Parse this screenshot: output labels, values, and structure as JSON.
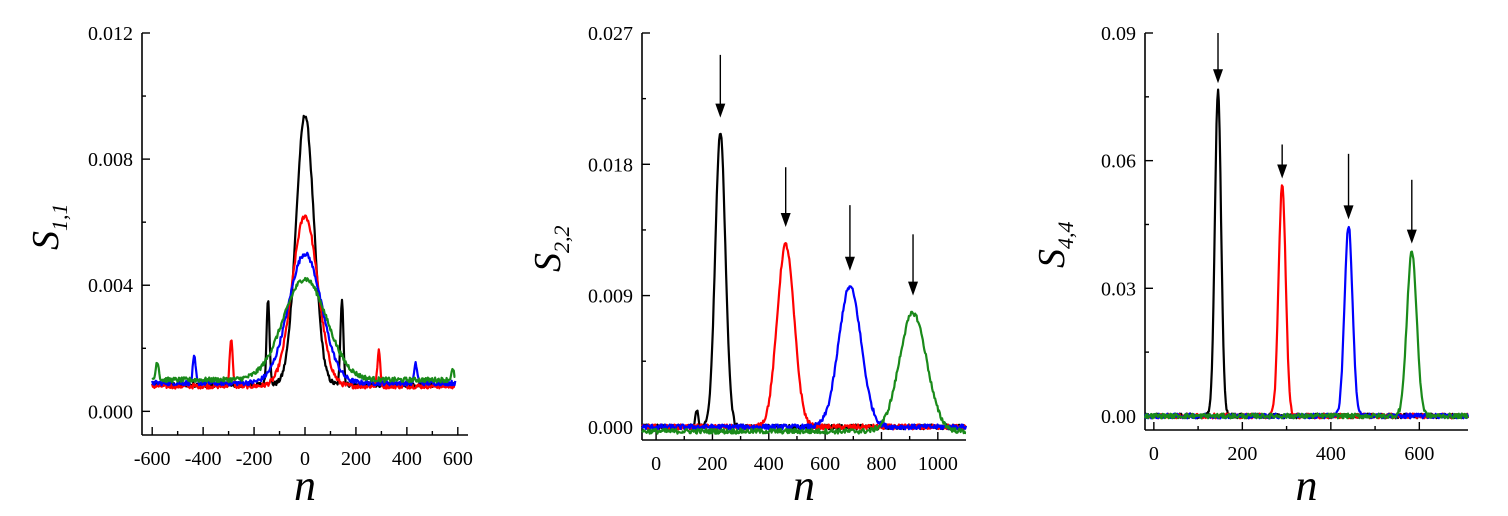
{
  "colors": {
    "black": "#000000",
    "red": "#ff0000",
    "blue": "#0000ff",
    "green": "#1a8a1a"
  },
  "chart_data": [
    {
      "type": "line",
      "xlabel": "n",
      "ylabel": "S",
      "ylabel_sub": "1,1",
      "xlim": [
        -640,
        640
      ],
      "ylim": [
        -0.00075,
        0.012
      ],
      "xticks": [
        -600,
        -400,
        -200,
        0,
        200,
        400,
        600
      ],
      "xtick_labels": [
        "-600",
        "-400",
        "-200",
        "0",
        "200",
        "400",
        "600"
      ],
      "yticks": [
        0.0,
        0.004,
        0.008,
        0.012
      ],
      "ytick_labels": [
        "0.000",
        "0.004",
        "0.008",
        "0.012"
      ],
      "grid": false,
      "series": [
        {
          "color": "black",
          "peak": {
            "x": 0,
            "y": 0.0094,
            "width": 35
          },
          "baseline": 0.00085,
          "side_peaks": [
            {
              "x": -145,
              "y": 0.0036
            },
            {
              "x": 145,
              "y": 0.0036
            }
          ],
          "x_range": [
            -600,
            590
          ]
        },
        {
          "color": "red",
          "peak": {
            "x": 0,
            "y": 0.0062,
            "width": 50
          },
          "baseline": 0.0008,
          "side_peaks": [
            {
              "x": -290,
              "y": 0.0023
            },
            {
              "x": 290,
              "y": 0.0019
            }
          ],
          "x_range": [
            -600,
            590
          ]
        },
        {
          "color": "blue",
          "peak": {
            "x": 0,
            "y": 0.005,
            "width": 65
          },
          "baseline": 0.0009,
          "side_peaks": [
            {
              "x": -435,
              "y": 0.0017
            },
            {
              "x": 435,
              "y": 0.0015
            }
          ],
          "x_range": [
            -600,
            590
          ]
        },
        {
          "color": "green",
          "peak": {
            "x": 0,
            "y": 0.0042,
            "width": 85
          },
          "baseline": 0.001,
          "side_peaks": [
            {
              "x": -580,
              "y": 0.0016
            },
            {
              "x": 580,
              "y": 0.0013
            }
          ],
          "x_range": [
            -600,
            590
          ]
        }
      ],
      "arrows": []
    },
    {
      "type": "line",
      "xlabel": "n",
      "ylabel": "S",
      "ylabel_sub": "2,2",
      "xlim": [
        -50,
        1100
      ],
      "ylim": [
        -0.0009,
        0.027
      ],
      "xticks": [
        0,
        200,
        400,
        600,
        800,
        1000
      ],
      "xtick_labels": [
        "0",
        "200",
        "400",
        "600",
        "800",
        "1000"
      ],
      "yticks": [
        0.0,
        0.009,
        0.018,
        0.027
      ],
      "ytick_labels": [
        "0.000",
        "0.009",
        "0.018",
        "0.027"
      ],
      "grid": false,
      "series": [
        {
          "color": "black",
          "peak": {
            "x": 228,
            "y": 0.0202,
            "width": 18
          },
          "baseline": 0.0,
          "side_peaks": [
            {
              "x": 145,
              "y": 0.0012
            }
          ],
          "x_range": [
            -50,
            1100
          ]
        },
        {
          "color": "red",
          "peak": {
            "x": 460,
            "y": 0.0125,
            "width": 30
          },
          "baseline": 0.0,
          "side_peaks": [],
          "x_range": [
            -50,
            1100
          ]
        },
        {
          "color": "blue",
          "peak": {
            "x": 688,
            "y": 0.0096,
            "width": 40
          },
          "baseline": 0.0,
          "side_peaks": [],
          "x_range": [
            -50,
            1100
          ]
        },
        {
          "color": "green",
          "peak": {
            "x": 912,
            "y": 0.0078,
            "width": 48
          },
          "baseline": -0.0003,
          "side_peaks": [],
          "x_range": [
            -50,
            1100
          ]
        }
      ],
      "arrows": [
        {
          "x": 228,
          "y_top": 0.0255,
          "y_tip": 0.0212
        },
        {
          "x": 460,
          "y_top": 0.0178,
          "y_tip": 0.0137
        },
        {
          "x": 688,
          "y_top": 0.0152,
          "y_tip": 0.0107
        },
        {
          "x": 912,
          "y_top": 0.0132,
          "y_tip": 0.009
        }
      ]
    },
    {
      "type": "line",
      "xlabel": "n",
      "ylabel": "S",
      "ylabel_sub": "4,4",
      "xlim": [
        -20,
        710
      ],
      "ylim": [
        -0.0033,
        0.09
      ],
      "xticks": [
        0,
        200,
        400,
        600
      ],
      "xtick_labels": [
        "0",
        "200",
        "400",
        "600"
      ],
      "yticks": [
        0.0,
        0.03,
        0.06,
        0.09
      ],
      "ytick_labels": [
        "0.00",
        "0.03",
        "0.06",
        "0.09"
      ],
      "grid": false,
      "series": [
        {
          "color": "black",
          "peak": {
            "x": 145,
            "y": 0.0766,
            "width": 7
          },
          "baseline": 0.0,
          "side_peaks": [],
          "x_range": [
            -20,
            710
          ]
        },
        {
          "color": "red",
          "peak": {
            "x": 290,
            "y": 0.0543,
            "width": 8
          },
          "baseline": 0.0,
          "side_peaks": [],
          "x_range": [
            -20,
            710
          ]
        },
        {
          "color": "blue",
          "peak": {
            "x": 440,
            "y": 0.0447,
            "width": 9
          },
          "baseline": 0.0,
          "side_peaks": [],
          "x_range": [
            -20,
            710
          ]
        },
        {
          "color": "green",
          "peak": {
            "x": 583,
            "y": 0.0387,
            "width": 11
          },
          "baseline": 0.0,
          "side_peaks": [],
          "x_range": [
            -20,
            710
          ]
        }
      ],
      "arrows": [
        {
          "x": 145,
          "y_top": 0.09,
          "y_tip": 0.0782
        },
        {
          "x": 290,
          "y_top": 0.0638,
          "y_tip": 0.0558
        },
        {
          "x": 440,
          "y_top": 0.0616,
          "y_tip": 0.0462
        },
        {
          "x": 583,
          "y_top": 0.0555,
          "y_tip": 0.0405
        }
      ]
    }
  ]
}
